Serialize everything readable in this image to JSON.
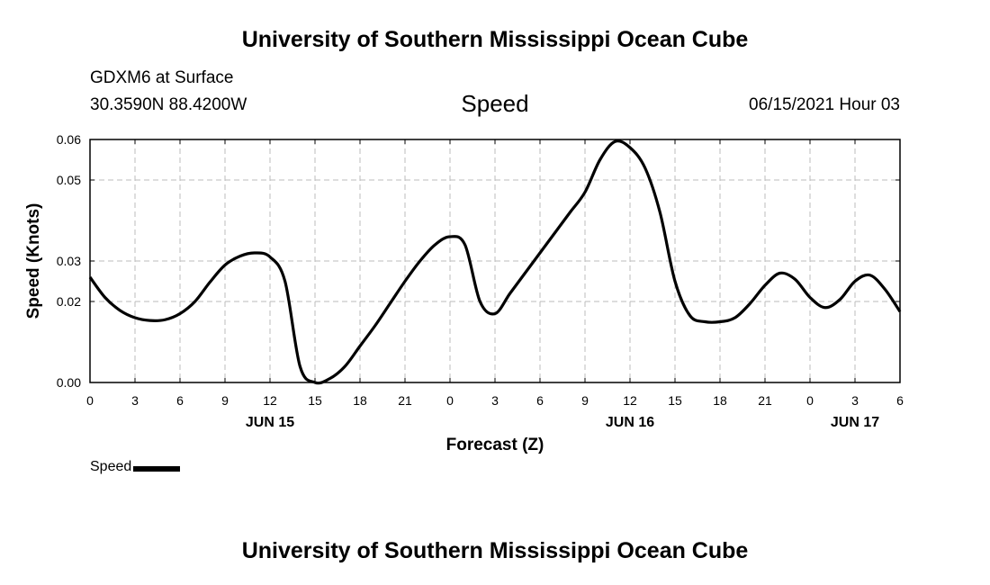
{
  "header": {
    "title": "University of Southern Mississippi Ocean Cube",
    "station": "GDXM6 at Surface",
    "coords": "30.3590N  88.4200W",
    "variable": "Speed",
    "datetime": "06/15/2021 Hour 03"
  },
  "footer": {
    "title": "University of Southern Mississippi Ocean Cube"
  },
  "legend": {
    "label": "Speed"
  },
  "colors": {
    "line": "#000000",
    "grid": "#bbbbbb"
  },
  "chart_data": {
    "type": "line",
    "title": "Speed",
    "xlabel": "Forecast (Z)",
    "ylabel": "Speed (Knots)",
    "xlim": [
      0,
      54
    ],
    "ylim": [
      0.0,
      0.06
    ],
    "grid": true,
    "x_ticks": [
      0,
      3,
      6,
      9,
      12,
      15,
      18,
      21,
      24,
      27,
      30,
      33,
      36,
      39,
      42,
      45,
      48,
      51,
      54
    ],
    "x_tick_labels": [
      "0",
      "3",
      "6",
      "9",
      "12",
      "15",
      "18",
      "21",
      "0",
      "3",
      "6",
      "9",
      "12",
      "15",
      "18",
      "21",
      "0",
      "3",
      "6"
    ],
    "y_ticks": [
      0.0,
      0.02,
      0.03,
      0.05,
      0.06
    ],
    "y_tick_labels": [
      "0.00",
      "0.02",
      "0.03",
      "0.05",
      "0.06"
    ],
    "date_labels": [
      {
        "x": 12,
        "label": "JUN 15"
      },
      {
        "x": 36,
        "label": "JUN 16"
      },
      {
        "x": 51,
        "label": "JUN 17"
      }
    ],
    "series": [
      {
        "name": "Speed",
        "x": [
          0,
          1,
          2,
          3,
          4,
          5,
          6,
          7,
          8,
          9,
          10,
          11,
          12,
          13,
          14,
          15,
          16,
          17,
          18,
          19,
          20,
          21,
          22,
          23,
          24,
          25,
          26,
          27,
          28,
          29,
          30,
          31,
          32,
          33,
          34,
          35,
          36,
          37,
          38,
          39,
          40,
          41,
          42,
          43,
          44,
          45,
          46,
          47,
          48,
          49,
          50,
          51,
          52,
          53,
          54
        ],
        "values": [
          0.026,
          0.021,
          0.0178,
          0.016,
          0.0153,
          0.0155,
          0.017,
          0.02,
          0.0248,
          0.029,
          0.0312,
          0.032,
          0.031,
          0.025,
          0.004,
          0.0,
          0.001,
          0.004,
          0.009,
          0.014,
          0.0195,
          0.025,
          0.03,
          0.034,
          0.036,
          0.034,
          0.02,
          0.017,
          0.022,
          0.027,
          0.032,
          0.037,
          0.042,
          0.047,
          0.055,
          0.0595,
          0.058,
          0.053,
          0.042,
          0.025,
          0.0165,
          0.015,
          0.015,
          0.016,
          0.0195,
          0.024,
          0.027,
          0.0255,
          0.021,
          0.0185,
          0.0205,
          0.025,
          0.0265,
          0.023,
          0.0175
        ]
      }
    ]
  }
}
